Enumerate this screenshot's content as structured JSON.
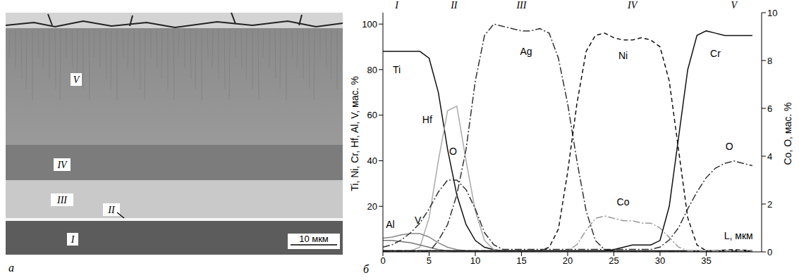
{
  "image": {
    "panel_label": "а",
    "layers": [
      "V",
      "IV",
      "III",
      "II",
      "I"
    ],
    "scale_bar": "10 мкм"
  },
  "chart_data": {
    "type": "line",
    "panel_label": "б",
    "x_label": "L, мкм",
    "y_label": "Ti, Ni, Cr, Hf, Al, V, мас. %",
    "y2_label": "Co, O, мас. %",
    "regions": [
      "I",
      "II",
      "III",
      "IV",
      "V"
    ],
    "xlim": [
      0,
      41
    ],
    "xticks": [
      0,
      5,
      10,
      15,
      20,
      25,
      30,
      35
    ],
    "ylim": [
      0,
      105
    ],
    "yticks": [
      20,
      40,
      60,
      80,
      100
    ],
    "y2lim": [
      0,
      10
    ],
    "y2ticks": [
      0,
      2,
      4,
      6,
      8,
      10
    ],
    "grid": false,
    "x": [
      0,
      1,
      2,
      3,
      4,
      5,
      6,
      7,
      8,
      9,
      10,
      11,
      12,
      13,
      14,
      15,
      16,
      17,
      18,
      19,
      20,
      21,
      22,
      23,
      24,
      25,
      26,
      27,
      28,
      29,
      30,
      31,
      32,
      33,
      34,
      35,
      36,
      37,
      38,
      39,
      40
    ],
    "series": [
      {
        "name": "Ti",
        "color": "#111111",
        "line_style": "solid",
        "values": [
          88,
          88,
          88,
          88,
          88,
          85,
          70,
          45,
          25,
          12,
          5,
          2,
          1,
          0.5,
          0.5,
          0.5,
          0.5,
          0.5,
          0.5,
          0.5,
          0.5,
          0.5,
          0.5,
          0.5,
          0.5,
          0.5,
          0.5,
          0.5,
          0.5,
          0.5,
          0.5,
          0.5,
          0.5,
          0.5,
          0.5,
          0.5,
          0.5,
          0.5,
          0.5,
          0.5,
          0.5
        ]
      },
      {
        "name": "Hf",
        "color": "#aaaaaa",
        "line_style": "solid",
        "values": [
          0,
          0,
          0,
          0.5,
          2,
          15,
          40,
          62,
          64,
          40,
          18,
          5,
          1,
          0,
          0,
          0,
          0,
          0,
          0,
          0,
          0,
          0,
          0,
          0,
          0,
          0,
          0,
          0,
          0,
          0,
          0,
          0,
          0,
          0,
          0,
          0,
          0,
          0,
          0,
          0,
          0
        ]
      },
      {
        "name": "Al",
        "color": "#777777",
        "line_style": "solid",
        "values": [
          5,
          5,
          4.5,
          4,
          3,
          2,
          1,
          0.5,
          0,
          0,
          0,
          0,
          0,
          0,
          0,
          0,
          0,
          0,
          0,
          0,
          0,
          0,
          0,
          0,
          0,
          0,
          0,
          0,
          0,
          0,
          0,
          0,
          0,
          0,
          0,
          0,
          0,
          0,
          0,
          0,
          0
        ]
      },
      {
        "name": "V",
        "color": "#888888",
        "line_style": "solid",
        "values": [
          6,
          6.5,
          7.5,
          8,
          8,
          6.5,
          4,
          2,
          1,
          0.5,
          0,
          0,
          0,
          0,
          0,
          0,
          0,
          0,
          0,
          0,
          0,
          0,
          0,
          0,
          0,
          0,
          0,
          0,
          0,
          0,
          0,
          0,
          0,
          0,
          0,
          0,
          0,
          0,
          0,
          0,
          0
        ]
      },
      {
        "name": "O",
        "color": "#333333",
        "line_style": "dashdot",
        "axis": "y2",
        "values": [
          0.2,
          0.3,
          0.5,
          0.8,
          1.2,
          1.8,
          2.5,
          3.0,
          3.0,
          2.6,
          1.8,
          0.8,
          0.3,
          0.1,
          0.1,
          0.1,
          0.1,
          0.1,
          0.1,
          0.1,
          0.1,
          0.1,
          0.1,
          0.1,
          0.1,
          0.1,
          0.1,
          0.1,
          0.1,
          0.1,
          0.2,
          0.5,
          1.0,
          1.8,
          2.5,
          3.1,
          3.5,
          3.7,
          3.8,
          3.7,
          3.6
        ]
      },
      {
        "name": "Ag",
        "color": "#333333",
        "line_style": "dashdot",
        "values": [
          0,
          0,
          0,
          0,
          0,
          0,
          5,
          12,
          25,
          45,
          75,
          95,
          100,
          99,
          98,
          97,
          97,
          98,
          96,
          85,
          65,
          40,
          18,
          5,
          1,
          0,
          0,
          0,
          0,
          0,
          0,
          0,
          0,
          0,
          0,
          0,
          0,
          0,
          0,
          0,
          0
        ]
      },
      {
        "name": "Ni",
        "color": "#111111",
        "line_style": "dashed",
        "values": [
          0.5,
          0.5,
          0.5,
          0.5,
          0.5,
          0.5,
          0.5,
          0.5,
          0.5,
          0.5,
          0.5,
          0.5,
          0.5,
          0.5,
          0.5,
          0.5,
          0.5,
          0.5,
          2,
          10,
          35,
          65,
          88,
          95,
          96,
          94,
          93,
          93,
          94,
          93,
          90,
          75,
          45,
          15,
          3,
          0.5,
          0.5,
          0.8,
          1,
          0.8,
          0.5
        ]
      },
      {
        "name": "Co",
        "color": "#999999",
        "line_style": "dashdot",
        "axis": "y2",
        "values": [
          0.05,
          0.05,
          0.05,
          0.05,
          0.05,
          0.05,
          0.05,
          0.05,
          0.05,
          0.05,
          0.05,
          0.05,
          0.05,
          0.05,
          0.05,
          0.05,
          0.05,
          0.05,
          0.05,
          0.05,
          0.05,
          0.3,
          0.9,
          1.4,
          1.5,
          1.4,
          1.3,
          1.3,
          1.2,
          1.2,
          1.0,
          0.6,
          0.2,
          0.05,
          0.05,
          0.05,
          0.05,
          0.05,
          0.05,
          0.05,
          0.05
        ]
      },
      {
        "name": "Cr",
        "color": "#111111",
        "line_style": "solid",
        "values": [
          0.5,
          0.5,
          0.5,
          0.5,
          0.5,
          0.5,
          0.5,
          0.5,
          0.5,
          0.5,
          0.5,
          0.5,
          0.5,
          0.5,
          0.5,
          0.5,
          0.5,
          0.5,
          0.5,
          0.5,
          0.5,
          0.5,
          0.5,
          0.5,
          0.5,
          1,
          2,
          3,
          3,
          3,
          5,
          20,
          50,
          80,
          95,
          97,
          96,
          95,
          95,
          95,
          95
        ]
      }
    ]
  }
}
